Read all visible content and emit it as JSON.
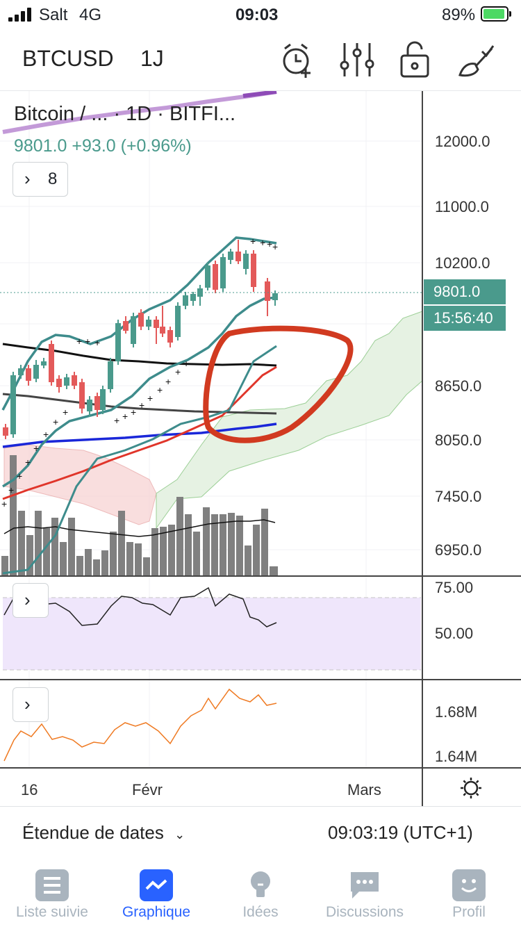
{
  "status_bar": {
    "carrier": "Salt",
    "network": "4G",
    "time": "09:03",
    "battery": "89%"
  },
  "header": {
    "symbol": "BTCUSD",
    "timeframe": "1J"
  },
  "chart": {
    "legend_title": "Bitcoin / ...  · 1D · BITFI...",
    "legend_price": "9801.0  +93.0 (+0.96%)",
    "indicators_count": "8",
    "price_axis": [
      "12000.0",
      "11000.0",
      "10200.0",
      "8650.0",
      "8050.0",
      "7450.0",
      "6950.0"
    ],
    "last_price_tag": "9801.0",
    "countdown_tag": "15:56:40",
    "rsi_axis": [
      "75.00",
      "50.00"
    ],
    "volume_axis": [
      "1.68M",
      "1.64M"
    ],
    "x_axis": [
      "16",
      "Févr",
      "Mars"
    ],
    "colors": {
      "up": "#4a9a8c",
      "down": "#e35a5a",
      "accent": "#2962ff"
    }
  },
  "bottom_bar": {
    "range_label": "Étendue de dates",
    "clock": "09:03:19 (UTC+1)"
  },
  "tabs": [
    {
      "label": "Liste suivie",
      "icon": "list-icon",
      "active": false
    },
    {
      "label": "Graphique",
      "icon": "chart-icon",
      "active": true
    },
    {
      "label": "Idées",
      "icon": "lightbulb-icon",
      "active": false
    },
    {
      "label": "Discussions",
      "icon": "chat-icon",
      "active": false
    },
    {
      "label": "Profil",
      "icon": "profile-icon",
      "active": false
    }
  ]
}
